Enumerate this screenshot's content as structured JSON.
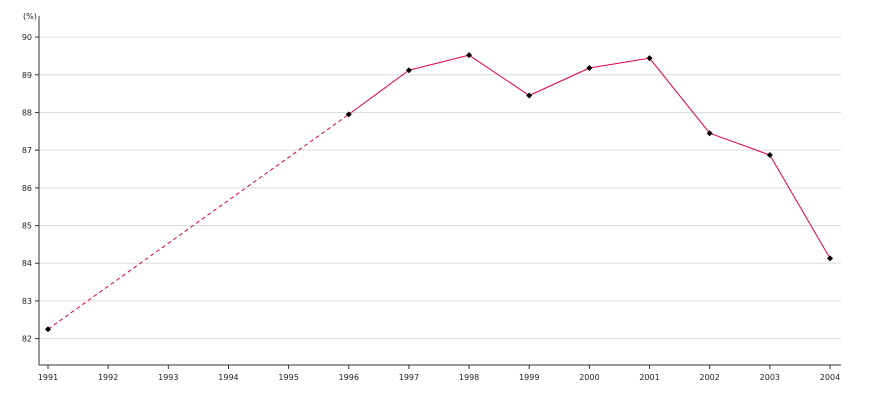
{
  "chart_data": {
    "type": "line",
    "title": "",
    "xlabel": "",
    "ylabel": "(%)",
    "x": [
      "1991",
      "1996",
      "1997",
      "1998",
      "1999",
      "2000",
      "2001",
      "2002",
      "2003",
      "2004"
    ],
    "x_ticks": [
      "1991",
      "1992",
      "1993",
      "1994",
      "1995",
      "1996",
      "1997",
      "1998",
      "1999",
      "2000",
      "2001",
      "2002",
      "2003",
      "2004"
    ],
    "y_ticks": [
      "82",
      "83",
      "84",
      "85",
      "86",
      "87",
      "88",
      "89",
      "90"
    ],
    "ylim": [
      81.3,
      90.4
    ],
    "series": [
      {
        "values": [
          82.25,
          87.95,
          89.12,
          89.52,
          88.45,
          89.18,
          89.44,
          87.45,
          86.87,
          84.13
        ],
        "dashed_segment": [
          "1991",
          "1996"
        ]
      }
    ],
    "grid": true,
    "legend": "none",
    "colors": {
      "line": "#e0003c",
      "marker": "#000000",
      "grid": "#dddddd",
      "axis": "#333333"
    }
  }
}
